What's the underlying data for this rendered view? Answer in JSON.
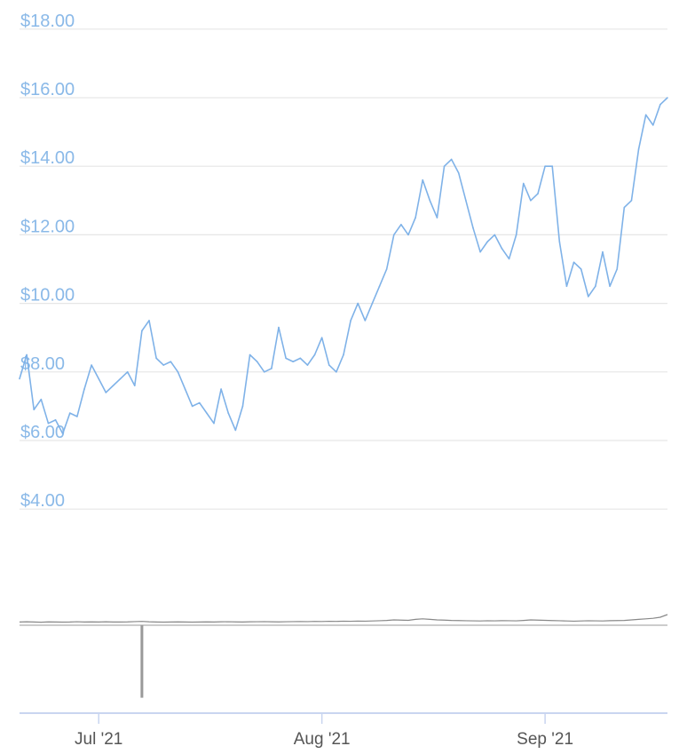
{
  "chart_data": {
    "type": "line",
    "title": "",
    "xlabel": "",
    "ylabel": "",
    "x_ticks": [
      "Jul '21",
      "Aug '21",
      "Sep '21"
    ],
    "y_ticks": [
      "$4.00",
      "$6.00",
      "$8.00",
      "$10.00",
      "$12.00",
      "$14.00",
      "$16.00",
      "$18.00"
    ],
    "ylim": [
      4,
      18
    ],
    "xlim": [
      "2021-06-20",
      "2021-09-18"
    ],
    "grid": true,
    "colors": {
      "price": "#7fb2e8",
      "volume": "#888888",
      "axis_labels": "#8ab9e8"
    },
    "series": [
      {
        "x": [
          "2021-06-20",
          "2021-06-21",
          "2021-06-22",
          "2021-06-23",
          "2021-06-24",
          "2021-06-25",
          "2021-06-26",
          "2021-06-27",
          "2021-06-28",
          "2021-06-29",
          "2021-06-30",
          "2021-07-01",
          "2021-07-02",
          "2021-07-03",
          "2021-07-04",
          "2021-07-05",
          "2021-07-06",
          "2021-07-07",
          "2021-07-08",
          "2021-07-09",
          "2021-07-10",
          "2021-07-11",
          "2021-07-12",
          "2021-07-13",
          "2021-07-14",
          "2021-07-15",
          "2021-07-16",
          "2021-07-17",
          "2021-07-18",
          "2021-07-19",
          "2021-07-20",
          "2021-07-21",
          "2021-07-22",
          "2021-07-23",
          "2021-07-24",
          "2021-07-25",
          "2021-07-26",
          "2021-07-27",
          "2021-07-28",
          "2021-07-29",
          "2021-07-30",
          "2021-07-31",
          "2021-08-01",
          "2021-08-02",
          "2021-08-03",
          "2021-08-04",
          "2021-08-05",
          "2021-08-06",
          "2021-08-07",
          "2021-08-08",
          "2021-08-09",
          "2021-08-10",
          "2021-08-11",
          "2021-08-12",
          "2021-08-13",
          "2021-08-14",
          "2021-08-15",
          "2021-08-16",
          "2021-08-17",
          "2021-08-18",
          "2021-08-19",
          "2021-08-20",
          "2021-08-21",
          "2021-08-22",
          "2021-08-23",
          "2021-08-24",
          "2021-08-25",
          "2021-08-26",
          "2021-08-27",
          "2021-08-28",
          "2021-08-29",
          "2021-08-30",
          "2021-08-31",
          "2021-09-01",
          "2021-09-02",
          "2021-09-03",
          "2021-09-04",
          "2021-09-05",
          "2021-09-06",
          "2021-09-07",
          "2021-09-08",
          "2021-09-09",
          "2021-09-10",
          "2021-09-11",
          "2021-09-12",
          "2021-09-13",
          "2021-09-14",
          "2021-09-15",
          "2021-09-16",
          "2021-09-17",
          "2021-09-18"
        ],
        "values": [
          7.8,
          8.5,
          6.9,
          7.2,
          6.5,
          6.6,
          6.2,
          6.8,
          6.7,
          7.5,
          8.2,
          7.8,
          7.4,
          7.6,
          7.8,
          8.0,
          7.6,
          9.2,
          9.5,
          8.4,
          8.2,
          8.3,
          8.0,
          7.5,
          7.0,
          7.1,
          6.8,
          6.5,
          7.5,
          6.8,
          6.3,
          7.0,
          8.5,
          8.3,
          8.0,
          8.1,
          9.3,
          8.4,
          8.3,
          8.4,
          8.2,
          8.5,
          9.0,
          8.2,
          8.0,
          8.5,
          9.5,
          10.0,
          9.5,
          10.0,
          10.5,
          11.0,
          12.0,
          12.3,
          12.0,
          12.5,
          13.6,
          13.0,
          12.5,
          14.0,
          14.2,
          13.8,
          13.0,
          12.2,
          11.5,
          11.8,
          12.0,
          11.6,
          11.3,
          12.0,
          13.5,
          13.0,
          13.2,
          14.0,
          14.0,
          11.8,
          10.5,
          11.2,
          11.0,
          10.2,
          10.5,
          11.5,
          10.5,
          11.0,
          12.8,
          13.0,
          14.5,
          15.5,
          15.2,
          15.8,
          16.0
        ],
        "volume": [
          0.3,
          0.32,
          0.3,
          0.28,
          0.31,
          0.3,
          0.29,
          0.3,
          0.33,
          0.3,
          0.31,
          0.3,
          0.32,
          0.3,
          0.3,
          0.31,
          0.34,
          0.36,
          0.32,
          0.3,
          0.29,
          0.3,
          0.31,
          0.3,
          0.29,
          0.3,
          0.31,
          0.3,
          0.32,
          0.33,
          0.31,
          0.3,
          0.32,
          0.33,
          0.34,
          0.32,
          0.31,
          0.33,
          0.34,
          0.35,
          0.34,
          0.36,
          0.35,
          0.37,
          0.36,
          0.38,
          0.37,
          0.39,
          0.38,
          0.4,
          0.42,
          0.45,
          0.5,
          0.48,
          0.46,
          0.55,
          0.6,
          0.55,
          0.5,
          0.48,
          0.45,
          0.44,
          0.42,
          0.41,
          0.4,
          0.42,
          0.41,
          0.43,
          0.42,
          0.41,
          0.45,
          0.5,
          0.48,
          0.46,
          0.44,
          0.42,
          0.4,
          0.38,
          0.4,
          0.42,
          0.41,
          0.4,
          0.43,
          0.44,
          0.45,
          0.5,
          0.55,
          0.6,
          0.65,
          0.75,
          1.0
        ],
        "volume_spike": {
          "date": "2021-07-07",
          "value": -8.5
        }
      }
    ]
  }
}
